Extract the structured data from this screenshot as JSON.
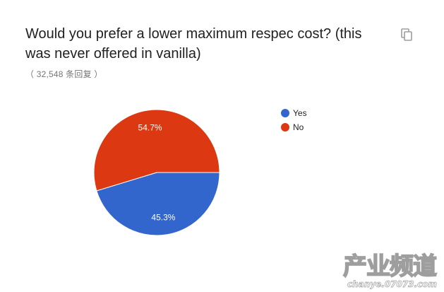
{
  "question": {
    "title": "Would you prefer a lower maximum respec cost? (this was never offered in vanilla)",
    "responses": "（ 32,548 条回复 ）"
  },
  "toolbar": {
    "copy_icon": "copy-icon"
  },
  "chart_data": {
    "type": "pie",
    "title": "",
    "legend_position": "right",
    "slices": [
      {
        "label": "Yes",
        "value": 45.3,
        "value_label": "45.3%",
        "color": "#3366cc"
      },
      {
        "label": "No",
        "value": 54.7,
        "value_label": "54.7%",
        "color": "#dc3912"
      }
    ]
  },
  "watermark": {
    "title": "产业频道",
    "url": "chanye.07073.com"
  }
}
